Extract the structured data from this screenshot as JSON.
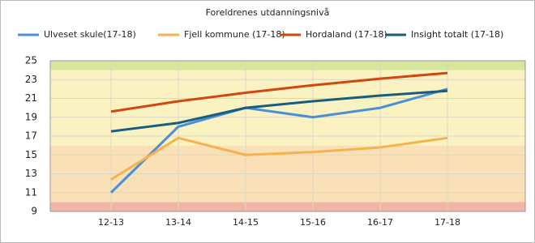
{
  "chart_data": {
    "type": "line",
    "title": "Foreldrenes utdanningsnivå",
    "categories": [
      "12-13",
      "13-14",
      "14-15",
      "15-16",
      "16-17",
      "17-18"
    ],
    "series": [
      {
        "name": "Ulveset skule(17-18)",
        "color": "#4a8fd8",
        "values": [
          11,
          18,
          20,
          19,
          20,
          22
        ]
      },
      {
        "name": "Fjell kommune (17-18)",
        "color": "#f6b24e",
        "values": [
          12.4,
          16.8,
          15,
          15.3,
          15.8,
          16.8
        ]
      },
      {
        "name": "Hordaland (17-18)",
        "color": "#d2460f",
        "values": [
          19.6,
          20.7,
          21.6,
          22.4,
          23.1,
          23.7
        ]
      },
      {
        "name": "Insight totalt (17-18)",
        "color": "#175d80",
        "values": [
          17.5,
          18.4,
          20,
          20.7,
          21.3,
          21.8
        ]
      }
    ],
    "ylim": [
      9,
      25
    ],
    "yticks": [
      9,
      11,
      13,
      15,
      17,
      19,
      21,
      23,
      25
    ],
    "grid": true,
    "bands": [
      {
        "from": 9,
        "to": 10,
        "color": "#f2b4a6"
      },
      {
        "from": 10,
        "to": 16,
        "color": "#fae0b6"
      },
      {
        "from": 16,
        "to": 24,
        "color": "#fbf2c2"
      },
      {
        "from": 24,
        "to": 25,
        "color": "#d6e69c"
      }
    ]
  }
}
